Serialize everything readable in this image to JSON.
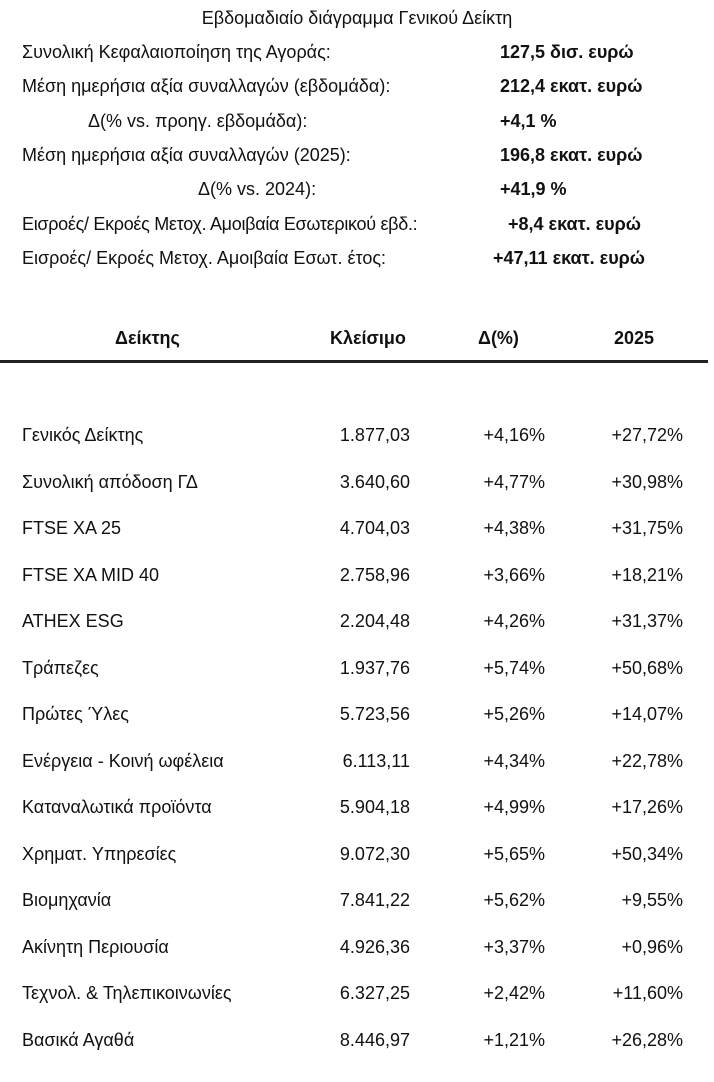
{
  "title": "Εβδομαδιαίο διάγραμμα Γενικού Δείκτη",
  "summary": [
    {
      "label": "Συνολική Κεφαλαιοποίηση της Αγοράς:",
      "value": "127,5 δισ. ευρώ"
    },
    {
      "label": "Μέση ημερήσια αξία συναλλαγών (εβδομάδα):",
      "value": "212,4 εκατ. ευρώ"
    },
    {
      "label": "Δ(% vs. προηγ. εβδομάδα):",
      "value": "+4,1 %"
    },
    {
      "label": "Μέση ημερήσια αξία συναλλαγών (2025):",
      "value": "196,8 εκατ. ευρώ"
    },
    {
      "label": "Δ(% vs. 2024):",
      "value": "+41,9 %"
    },
    {
      "label": "Εισροές/ Εκροές Μετοχ. Αμοιβαία Εσωτερικού εβδ.:",
      "value": "+8,4 εκατ. ευρώ"
    },
    {
      "label": "Εισροές/ Εκροές Μετοχ. Αμοιβαία Εσωτ. έτος:",
      "value": "+47,11 εκατ. ευρώ"
    }
  ],
  "table": {
    "headers": [
      "Δείκτης",
      "Κλείσιμο",
      "Δ(%)",
      "2025"
    ],
    "rows": [
      [
        "Γενικός Δείκτης",
        "1.877,03",
        "+4,16%",
        "+27,72%"
      ],
      [
        "Συνολική απόδοση ΓΔ",
        "3.640,60",
        "+4,77%",
        "+30,98%"
      ],
      [
        "FTSE XA 25",
        "4.704,03",
        "+4,38%",
        "+31,75%"
      ],
      [
        "FTSE XA MID 40",
        "2.758,96",
        "+3,66%",
        "+18,21%"
      ],
      [
        "ATHEX ESG",
        "2.204,48",
        "+4,26%",
        "+31,37%"
      ],
      [
        "Τράπεζες",
        "1.937,76",
        "+5,74%",
        "+50,68%"
      ],
      [
        "Πρώτες Ύλες",
        "5.723,56",
        "+5,26%",
        "+14,07%"
      ],
      [
        "Ενέργεια - Κοινή ωφέλεια",
        "6.113,11",
        "+4,34%",
        "+22,78%"
      ],
      [
        "Καταναλωτικά προϊόντα",
        "5.904,18",
        "+4,99%",
        "+17,26%"
      ],
      [
        "Χρηματ. Υπηρεσίες",
        "9.072,30",
        "+5,65%",
        "+50,34%"
      ],
      [
        "Βιομηχανία",
        "7.841,22",
        "+5,62%",
        "+9,55%"
      ],
      [
        "Ακίνητη Περιουσία",
        "4.926,36",
        "+3,37%",
        "+0,96%"
      ],
      [
        "Τεχνολ. & Τηλεπικοινωνίες",
        "6.327,25",
        "+2,42%",
        "+11,60%"
      ],
      [
        "Βασικά Αγαθά",
        "8.446,97",
        "+1,21%",
        "+26,28%"
      ]
    ]
  }
}
